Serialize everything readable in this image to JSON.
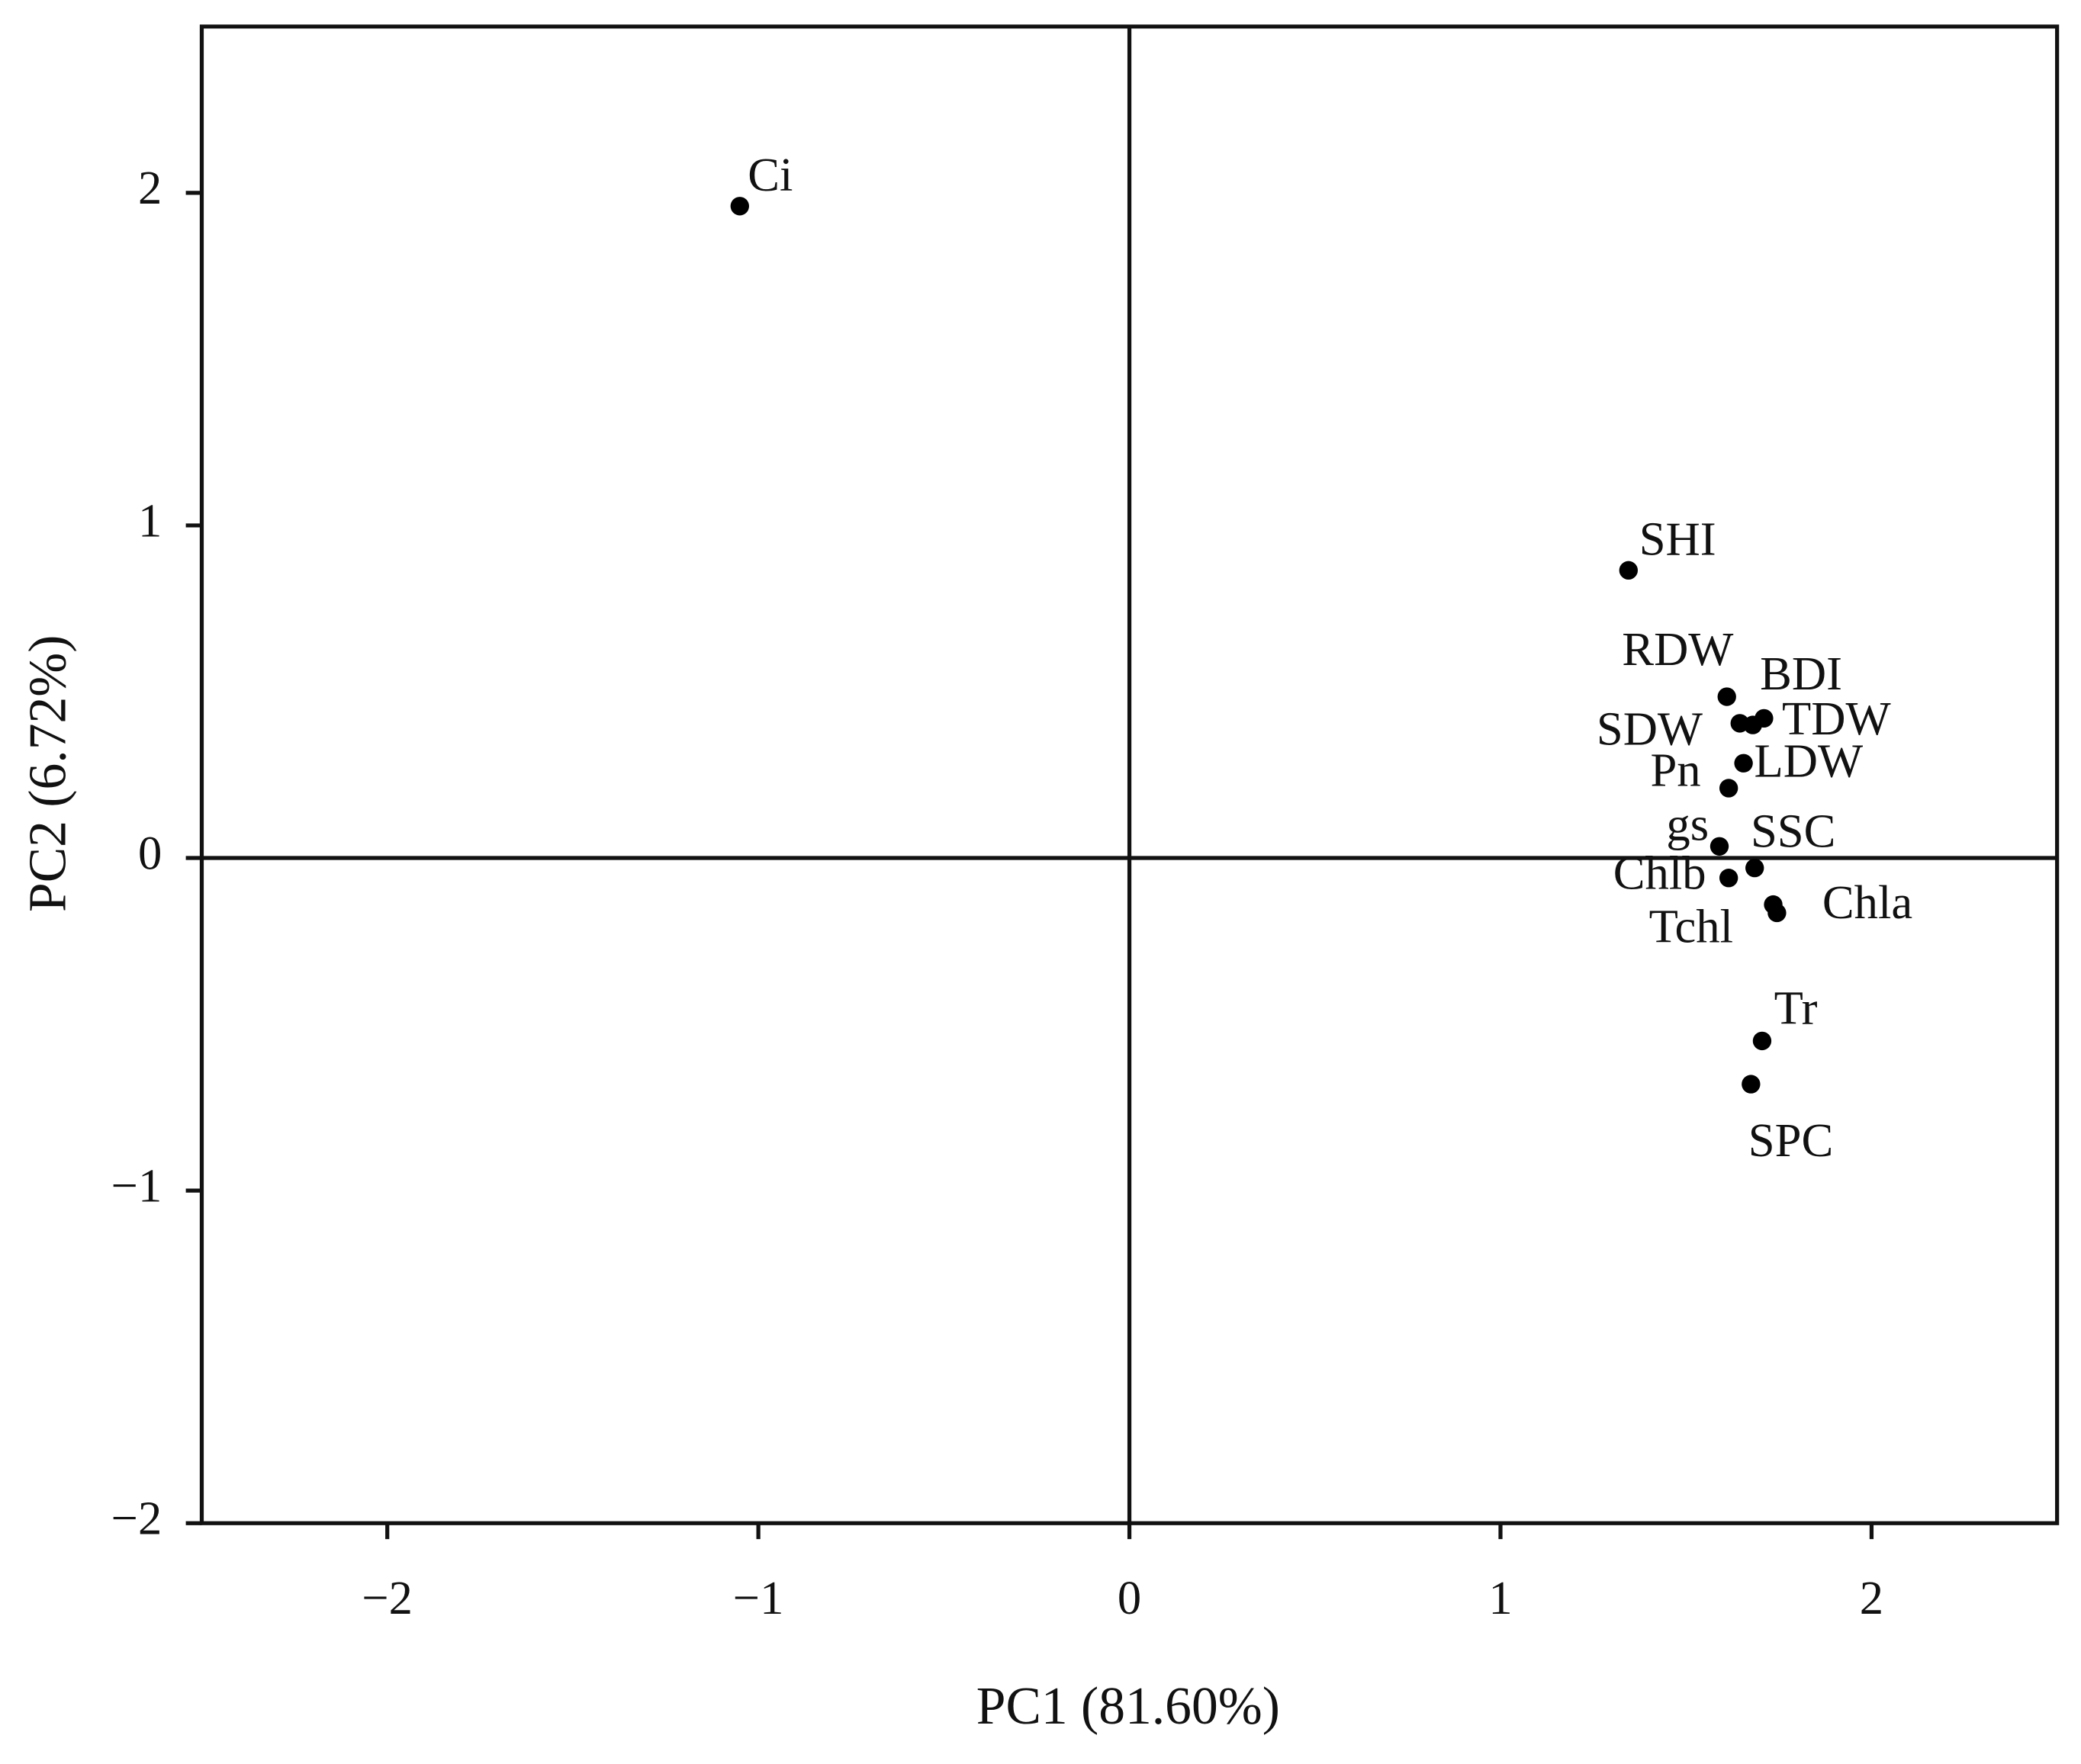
{
  "chart_data": {
    "type": "scatter",
    "x_label": "PC1 (81.60%)",
    "y_label": "PC2 (6.72%)",
    "labels": [
      "Ci",
      "SHI",
      "RDW",
      "BDI",
      "TDW",
      "SDW",
      "LDW",
      "Pn",
      "gs",
      "SSC",
      "Chlb",
      "Chla",
      "Tchl",
      "Tr",
      "SPC"
    ],
    "x": [
      -1.05,
      1.345,
      1.61,
      1.71,
      1.68,
      1.645,
      1.655,
      1.615,
      1.59,
      1.685,
      1.615,
      1.735,
      1.745,
      1.705,
      1.675
    ],
    "values": [
      1.96,
      0.865,
      0.485,
      0.42,
      0.4,
      0.405,
      0.285,
      0.21,
      0.035,
      -0.03,
      -0.06,
      -0.14,
      -0.165,
      -0.55,
      -0.68
    ],
    "color": "#000000",
    "xlim": [
      -2.5,
      2.5
    ],
    "ylim": [
      -2,
      2.5
    ],
    "xticks": [
      {
        "value": -2,
        "label": "−2"
      },
      {
        "value": -1,
        "label": "−1"
      },
      0,
      1,
      2
    ],
    "yticks": [
      {
        "value": -2,
        "label": "−2"
      },
      {
        "value": -1,
        "label": "−1"
      },
      0,
      1,
      2
    ]
  }
}
